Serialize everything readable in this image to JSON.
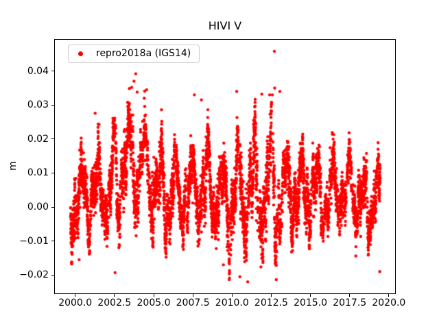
{
  "chart_data": {
    "type": "scatter",
    "title": "HIVI V",
    "ylabel": "m",
    "xlabel": "",
    "grid": false,
    "legend_position": "upper left",
    "xlim": [
      1998.7,
      2020.4
    ],
    "ylim": [
      -0.0254,
      0.0492
    ],
    "x_ticks": [
      {
        "v": 2000.0,
        "label": "2000.0"
      },
      {
        "v": 2002.5,
        "label": "2002.5"
      },
      {
        "v": 2005.0,
        "label": "2005.0"
      },
      {
        "v": 2007.5,
        "label": "2007.5"
      },
      {
        "v": 2010.0,
        "label": "2010.0"
      },
      {
        "v": 2012.5,
        "label": "2012.5"
      },
      {
        "v": 2015.0,
        "label": "2015.0"
      },
      {
        "v": 2017.5,
        "label": "2017.5"
      },
      {
        "v": 2020.0,
        "label": "2020.0"
      }
    ],
    "y_ticks": [
      {
        "v": -0.02,
        "label": "−0.02"
      },
      {
        "v": -0.01,
        "label": "−0.01"
      },
      {
        "v": 0.0,
        "label": "0.00"
      },
      {
        "v": 0.01,
        "label": "0.01"
      },
      {
        "v": 0.02,
        "label": "0.02"
      },
      {
        "v": 0.03,
        "label": "0.03"
      },
      {
        "v": 0.04,
        "label": "0.04"
      }
    ],
    "series": [
      {
        "name": "repro2018a (IGS14)",
        "color": "#ff0000",
        "marker": "dot",
        "marker_radius_px": 2.2,
        "start": 1999.7,
        "end": 2019.45,
        "points_per_year": 330,
        "seed": 1337,
        "data_min": -0.022,
        "data_max": 0.0458,
        "envelope": [
          [
            1999.7,
            0.004,
            0.0085,
            0.0028
          ],
          [
            2000.5,
            0.004,
            0.0085,
            0.0028
          ],
          [
            2001.5,
            0.0045,
            0.0085,
            0.0028
          ],
          [
            2002.3,
            0.006,
            0.009,
            0.003
          ],
          [
            2003.2,
            0.012,
            0.0095,
            0.0034
          ],
          [
            2003.9,
            0.013,
            0.01,
            0.0036
          ],
          [
            2004.5,
            0.01,
            0.0095,
            0.0034
          ],
          [
            2005.5,
            0.006,
            0.009,
            0.003
          ],
          [
            2006.5,
            0.0045,
            0.0085,
            0.0028
          ],
          [
            2007.5,
            0.005,
            0.0085,
            0.0029
          ],
          [
            2008.5,
            0.005,
            0.009,
            0.003
          ],
          [
            2009.5,
            0.004,
            0.0095,
            0.0032
          ],
          [
            2010.5,
            0.0035,
            0.0115,
            0.0036
          ],
          [
            2011.5,
            0.004,
            0.0115,
            0.0036
          ],
          [
            2012.5,
            0.005,
            0.0125,
            0.0036
          ],
          [
            2013.3,
            0.0045,
            0.01,
            0.0032
          ],
          [
            2014.5,
            0.004,
            0.008,
            0.0028
          ],
          [
            2015.5,
            0.0035,
            0.007,
            0.0027
          ],
          [
            2016.5,
            0.003,
            0.0065,
            0.0026
          ],
          [
            2017.5,
            0.003,
            0.006,
            0.0026
          ],
          [
            2018.5,
            0.0028,
            0.006,
            0.0026
          ],
          [
            2019.45,
            0.002,
            0.0065,
            0.0028
          ]
        ],
        "outliers": [
          [
            2000.25,
            -0.0155
          ],
          [
            2001.27,
            0.0276
          ],
          [
            2002.54,
            -0.0193
          ],
          [
            2003.6,
            0.0352
          ],
          [
            2003.75,
            0.037
          ],
          [
            2003.86,
            0.0392
          ],
          [
            2003.95,
            0.0338
          ],
          [
            2004.55,
            0.0345
          ],
          [
            2005.5,
            0.0286
          ],
          [
            2007.6,
            0.033
          ],
          [
            2008.05,
            0.0315
          ],
          [
            2009.45,
            -0.017
          ],
          [
            2010.3,
            0.034
          ],
          [
            2010.5,
            -0.0205
          ],
          [
            2011.0,
            -0.022
          ],
          [
            2011.9,
            0.0332
          ],
          [
            2012.4,
            0.033
          ],
          [
            2012.7,
            0.0458
          ],
          [
            2012.72,
            0.035
          ],
          [
            2013.05,
            0.034
          ],
          [
            2019.42,
            -0.019
          ]
        ]
      }
    ]
  },
  "legend": {
    "entries": [
      {
        "label": "repro2018a (IGS14)",
        "marker_color": "#ff0000"
      }
    ]
  },
  "colors": {
    "marker": "#ff0000",
    "axes": "#000000",
    "legend_border": "#cccccc",
    "background": "#ffffff"
  }
}
